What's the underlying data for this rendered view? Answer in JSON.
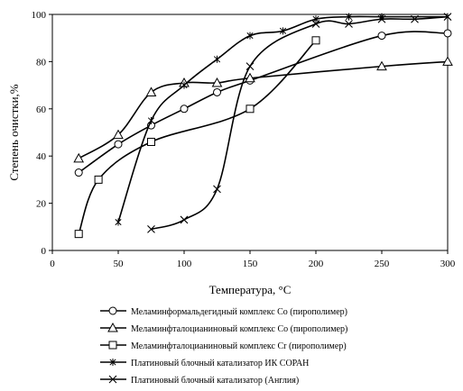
{
  "chart_data": {
    "type": "line",
    "title": "",
    "xlabel": "Температура, °С",
    "ylabel": "Степень очистки,%",
    "xlim": [
      0,
      300
    ],
    "ylim": [
      0,
      100
    ],
    "x_ticks": [
      0,
      50,
      100,
      150,
      200,
      250,
      300
    ],
    "y_ticks": [
      0,
      20,
      40,
      60,
      80,
      100
    ],
    "grid": false,
    "legend_position": "bottom",
    "series": [
      {
        "name": "Меламинформальдегидный комплекс Со (пирополимер)",
        "marker": "circle",
        "x": [
          20,
          50,
          75,
          100,
          125,
          150,
          250,
          300
        ],
        "y": [
          33,
          45,
          53,
          60,
          67,
          72,
          91,
          92
        ]
      },
      {
        "name": "Меламинфталоцианиновый комплекс Со (пирополимер)",
        "marker": "triangle",
        "x": [
          20,
          50,
          75,
          100,
          125,
          150,
          250,
          300
        ],
        "y": [
          39,
          49,
          67,
          71,
          71,
          73,
          78,
          80
        ]
      },
      {
        "name": "Меламинфталоцианиновый комплекс Cr (пирополимер)",
        "marker": "square",
        "x": [
          20,
          35,
          75,
          150,
          200
        ],
        "y": [
          7,
          30,
          46,
          60,
          89
        ]
      },
      {
        "name": "Платиновый блочный катализатор ИК СОРАН",
        "marker": "star",
        "x": [
          50,
          75,
          100,
          125,
          150,
          175,
          200,
          225,
          250,
          300
        ],
        "y": [
          12,
          55,
          70,
          81,
          91,
          93,
          98,
          99,
          99,
          99
        ]
      },
      {
        "name": "Платиновый блочный катализатор (Англия)",
        "marker": "x",
        "x": [
          75,
          100,
          125,
          150,
          200,
          225,
          250,
          275,
          300
        ],
        "y": [
          9,
          13,
          26,
          78,
          96,
          96,
          98,
          98,
          99
        ]
      }
    ]
  }
}
